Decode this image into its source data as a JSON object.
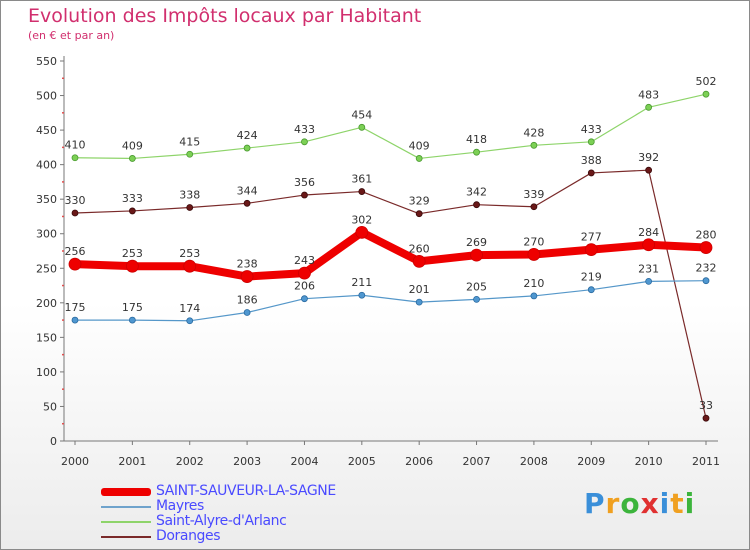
{
  "header": {
    "title": "Evolution des Impôts locaux par Habitant",
    "subtitle": "(en € et par an)"
  },
  "chart_data": {
    "type": "line",
    "x": [
      "2000",
      "2001",
      "2002",
      "2003",
      "2004",
      "2005",
      "2006",
      "2007",
      "2008",
      "2009",
      "2010",
      "2011"
    ],
    "ylim": [
      0,
      550
    ],
    "yticks": [
      0,
      50,
      100,
      150,
      200,
      250,
      300,
      350,
      400,
      450,
      500,
      550
    ],
    "grid": false,
    "legend_position": "bottom-left",
    "series": [
      {
        "name": "Saint-Alyre-d'Arlanc",
        "color": "#8ed46a",
        "values": [
          410,
          409,
          415,
          424,
          433,
          454,
          409,
          418,
          428,
          433,
          483,
          502
        ]
      },
      {
        "name": "Doranges",
        "color": "#7a2a2a",
        "values": [
          330,
          333,
          338,
          344,
          356,
          361,
          329,
          342,
          339,
          388,
          392,
          33
        ]
      },
      {
        "name": "SAINT-SAUVEUR-LA-SAGNE",
        "color": "#ee0000",
        "values": [
          256,
          253,
          253,
          238,
          243,
          302,
          260,
          269,
          270,
          277,
          284,
          280
        ]
      },
      {
        "name": "Mayres",
        "color": "#5597c9",
        "values": [
          175,
          175,
          174,
          186,
          206,
          211,
          201,
          205,
          210,
          219,
          231,
          232
        ]
      }
    ]
  },
  "legend": {
    "items": [
      {
        "label": "SAINT-SAUVEUR-LA-SAGNE",
        "color": "#ee0000",
        "text_color": "#4a4aff"
      },
      {
        "label": "Mayres",
        "color": "#6fa3cc",
        "text_color": "#4a4aff"
      },
      {
        "label": "Saint-Alyre-d'Arlanc",
        "color": "#8ed46a",
        "text_color": "#4a4aff"
      },
      {
        "label": "Doranges",
        "color": "#7a2a2a",
        "text_color": "#4a4aff"
      }
    ]
  },
  "logo": {
    "letters": [
      "P",
      "r",
      "o",
      "x",
      "i",
      "t",
      "i"
    ],
    "colors": [
      "#3a8fd9",
      "#f0a020",
      "#3cb43c",
      "#e03030",
      "#3a8fd9",
      "#f0a020",
      "#3cb43c"
    ]
  }
}
